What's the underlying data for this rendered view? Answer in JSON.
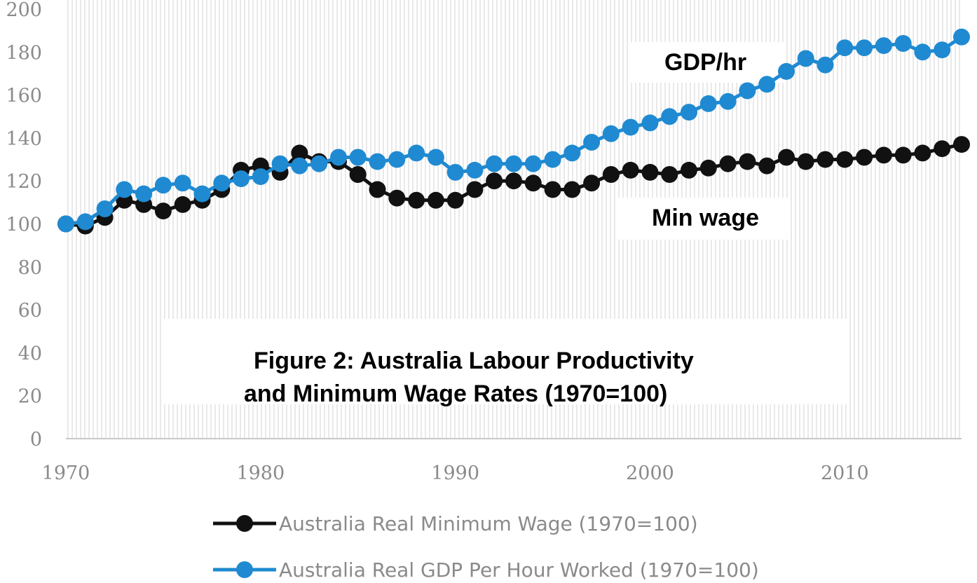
{
  "chart_data": {
    "type": "line",
    "title_lines": [
      "Figure 2: Australia Labour Productivity",
      "and Minimum Wage Rates (1970=100)"
    ],
    "annotations": [
      {
        "id": "gdp",
        "text": "GDP/hr"
      },
      {
        "id": "minwage",
        "text": "Min wage"
      }
    ],
    "xlim": [
      1970,
      2016
    ],
    "ylim": [
      0,
      200
    ],
    "x_ticks": [
      1970,
      1980,
      1990,
      2000,
      2010
    ],
    "y_ticks": [
      0,
      20,
      40,
      60,
      80,
      100,
      120,
      140,
      160,
      180,
      200
    ],
    "grid": "vertical hatching",
    "legend_position": "bottom",
    "x": [
      1970,
      1971,
      1972,
      1973,
      1974,
      1975,
      1976,
      1977,
      1978,
      1979,
      1980,
      1981,
      1982,
      1983,
      1984,
      1985,
      1986,
      1987,
      1988,
      1989,
      1990,
      1991,
      1992,
      1993,
      1994,
      1995,
      1996,
      1997,
      1998,
      1999,
      2000,
      2001,
      2002,
      2003,
      2004,
      2005,
      2006,
      2007,
      2008,
      2009,
      2010,
      2011,
      2012,
      2013,
      2014,
      2015,
      2016
    ],
    "series": [
      {
        "name": "Australia Real Minimum Wage (1970=100)",
        "color": "#111111",
        "values": [
          100,
          99,
          103,
          111,
          109,
          106,
          109,
          111,
          116,
          125,
          127,
          124,
          133,
          129,
          129,
          123,
          116,
          112,
          111,
          111,
          111,
          116,
          120,
          120,
          119,
          116,
          116,
          119,
          123,
          125,
          124,
          123,
          125,
          126,
          128,
          129,
          127,
          131,
          129,
          130,
          130,
          131,
          132,
          132,
          133,
          135,
          137
        ]
      },
      {
        "name": "Australia Real GDP Per Hour Worked (1970=100)",
        "color": "#1f8ad1",
        "values": [
          100,
          101,
          107,
          116,
          114,
          118,
          119,
          114,
          119,
          121,
          122,
          128,
          127,
          128,
          131,
          131,
          129,
          130,
          133,
          131,
          124,
          125,
          128,
          128,
          128,
          130,
          133,
          138,
          142,
          145,
          147,
          150,
          152,
          156,
          157,
          162,
          165,
          171,
          177,
          174,
          182,
          182,
          183,
          184,
          180,
          181,
          187
        ]
      }
    ]
  }
}
